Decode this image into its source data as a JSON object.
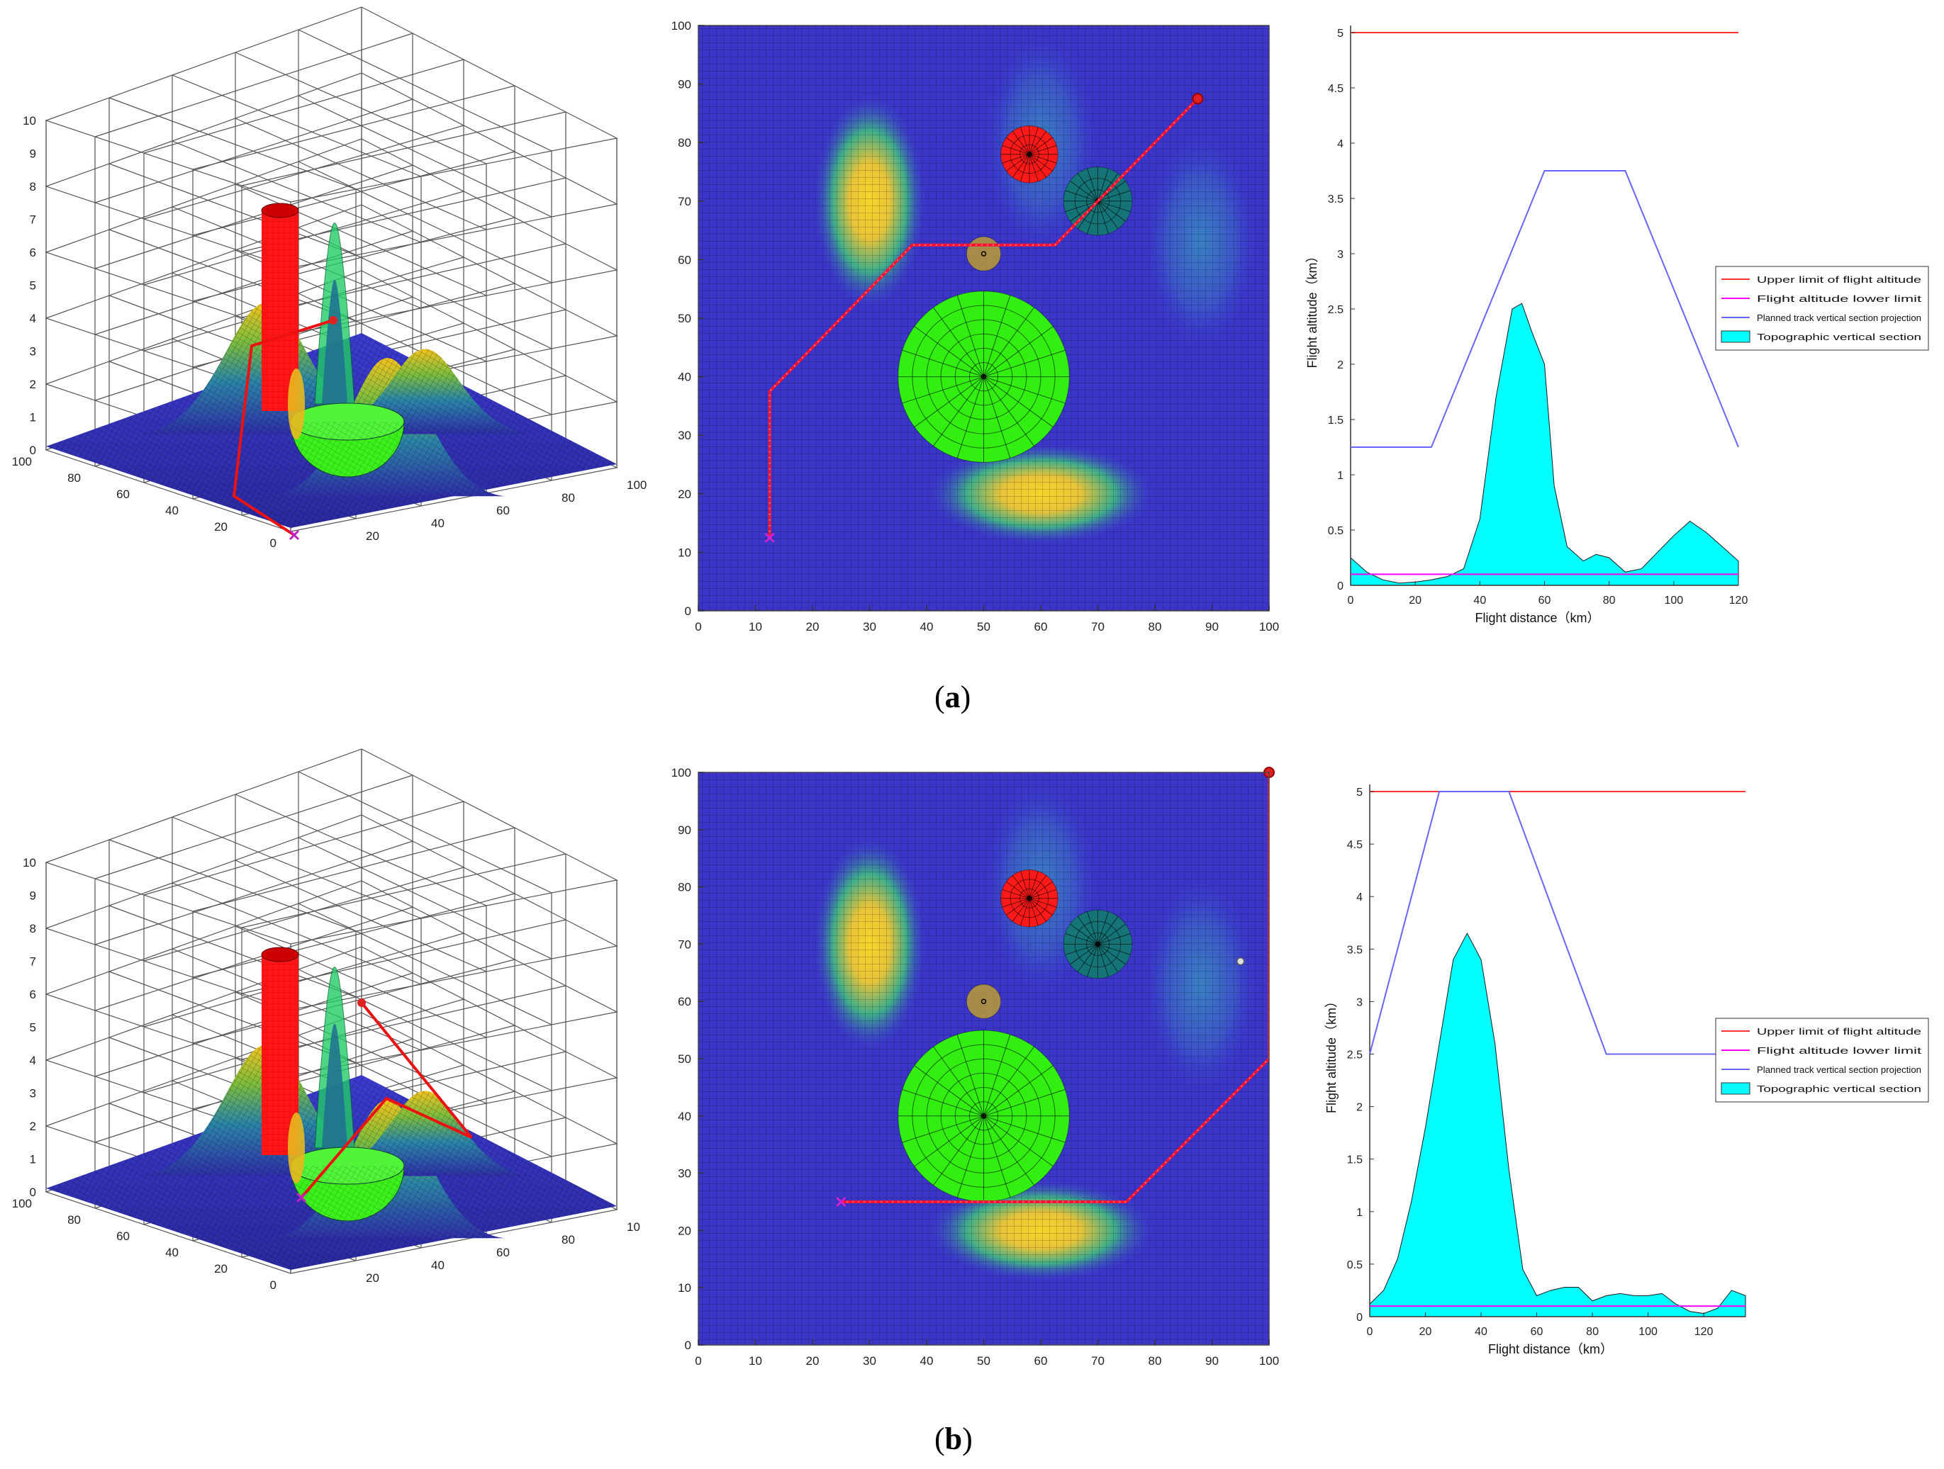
{
  "rows": [
    {
      "caption": {
        "open": "(",
        "letter": "a",
        "close": ")"
      },
      "surface3d": {
        "z_ticks": [
          "0",
          "1",
          "2",
          "3",
          "4",
          "5",
          "6",
          "7",
          "8",
          "9",
          "10"
        ],
        "left_ticks": [
          "100",
          "80",
          "60",
          "40",
          "20",
          "0"
        ],
        "right_ticks": [
          "20",
          "40",
          "60",
          "80",
          "100"
        ],
        "path_label": "planned 3D track"
      },
      "chart_data": {
        "type": "heatmap",
        "xlim": [
          0,
          100
        ],
        "ylim": [
          0,
          100
        ],
        "x_ticks": [
          "0",
          "10",
          "20",
          "30",
          "40",
          "50",
          "60",
          "70",
          "80",
          "90",
          "100"
        ],
        "y_ticks": [
          "0",
          "10",
          "20",
          "30",
          "40",
          "50",
          "60",
          "70",
          "80",
          "90",
          "100"
        ],
        "terrain_peaks": [
          {
            "x": 30,
            "y": 70,
            "height": 1.0
          },
          {
            "x": 60,
            "y": 20,
            "height": 1.0
          },
          {
            "x": 60,
            "y": 80,
            "height": 0.35
          },
          {
            "x": 88,
            "y": 63,
            "height": 0.3
          }
        ],
        "threats": [
          {
            "name": "no-fly-cylinder",
            "x": 58,
            "y": 78,
            "r": 5,
            "color": "#ff1a1a"
          },
          {
            "name": "radar-dome",
            "x": 70,
            "y": 70,
            "r": 6,
            "color": "#0f7f6a"
          },
          {
            "name": "small-threat",
            "x": 50,
            "y": 61,
            "r": 3,
            "color": "#c2a22e"
          },
          {
            "name": "large-dome",
            "x": 50,
            "y": 40,
            "r": 15,
            "color": "#33ee11"
          }
        ],
        "path": [
          [
            12.5,
            12.5
          ],
          [
            12.5,
            37.5
          ],
          [
            37.5,
            62.5
          ],
          [
            62.5,
            62.5
          ],
          [
            87.5,
            87.5
          ]
        ],
        "start": [
          12.5,
          12.5
        ],
        "goal": [
          87.5,
          87.5
        ]
      },
      "profile_data": {
        "type": "area",
        "xlim": [
          0,
          120
        ],
        "ylim": [
          0,
          5
        ],
        "x_ticks": [
          "0",
          "20",
          "40",
          "60",
          "80",
          "100",
          "120"
        ],
        "y_ticks": [
          "0",
          "0.5",
          "1",
          "1.5",
          "2",
          "2.5",
          "3",
          "3.5",
          "4",
          "4.5",
          "5"
        ],
        "xlabel": "Flight distance（km）",
        "ylabel": "Flight altitude（km）",
        "upper_limit": 5,
        "lower_limit": 0.1,
        "planned_track": {
          "x": [
            0,
            25,
            60,
            85,
            120
          ],
          "y": [
            1.25,
            1.25,
            3.75,
            3.75,
            1.25
          ]
        },
        "terrain": {
          "x": [
            0,
            5,
            10,
            15,
            20,
            25,
            30,
            35,
            40,
            45,
            50,
            53,
            56,
            60,
            63,
            67,
            72,
            76,
            80,
            85,
            90,
            95,
            100,
            105,
            110,
            115,
            120
          ],
          "y": [
            0.25,
            0.12,
            0.05,
            0.02,
            0.03,
            0.05,
            0.08,
            0.15,
            0.6,
            1.7,
            2.5,
            2.55,
            2.3,
            2.0,
            0.9,
            0.35,
            0.22,
            0.28,
            0.25,
            0.12,
            0.15,
            0.3,
            0.45,
            0.58,
            0.48,
            0.35,
            0.22
          ]
        },
        "legend": [
          {
            "label": "Upper limit of flight altitude",
            "color": "#ff3333",
            "style": "line"
          },
          {
            "label": "Flight altitude lower limit",
            "color": "#ff00ff",
            "style": "line"
          },
          {
            "label": "Planned track vertical section projection",
            "color": "#6666ff",
            "style": "line"
          },
          {
            "label": "Topographic vertical section",
            "color": "#00ffff",
            "style": "patch"
          }
        ]
      }
    },
    {
      "caption": {
        "open": "(",
        "letter": "b",
        "close": ")"
      },
      "surface3d": {
        "z_ticks": [
          "0",
          "1",
          "2",
          "3",
          "4",
          "5",
          "6",
          "7",
          "8",
          "9",
          "10"
        ],
        "left_ticks": [
          "100",
          "80",
          "60",
          "40",
          "20",
          "0"
        ],
        "right_ticks": [
          "20",
          "40",
          "60",
          "80",
          "10"
        ],
        "path_label": "planned 3D track"
      },
      "chart_data": {
        "type": "heatmap",
        "xlim": [
          0,
          100
        ],
        "ylim": [
          0,
          100
        ],
        "x_ticks": [
          "0",
          "10",
          "20",
          "30",
          "40",
          "50",
          "60",
          "70",
          "80",
          "90",
          "100"
        ],
        "y_ticks": [
          "0",
          "10",
          "20",
          "30",
          "40",
          "50",
          "60",
          "70",
          "80",
          "90",
          "100"
        ],
        "terrain_peaks": [
          {
            "x": 30,
            "y": 70,
            "height": 1.0
          },
          {
            "x": 60,
            "y": 20,
            "height": 1.0
          },
          {
            "x": 60,
            "y": 80,
            "height": 0.35
          },
          {
            "x": 88,
            "y": 63,
            "height": 0.3
          }
        ],
        "threats": [
          {
            "name": "no-fly-cylinder",
            "x": 58,
            "y": 78,
            "r": 5,
            "color": "#ff1a1a"
          },
          {
            "name": "radar-dome",
            "x": 70,
            "y": 70,
            "r": 6,
            "color": "#0f7f6a"
          },
          {
            "name": "small-threat",
            "x": 50,
            "y": 60,
            "r": 3,
            "color": "#c2a22e"
          },
          {
            "name": "large-dome",
            "x": 50,
            "y": 40,
            "r": 15,
            "color": "#33ee11"
          }
        ],
        "path": [
          [
            25,
            25
          ],
          [
            75,
            25
          ],
          [
            100,
            50
          ],
          [
            100,
            100
          ]
        ],
        "start": [
          25,
          25
        ],
        "goal": [
          100,
          100
        ],
        "extra_marker": [
          95,
          67
        ]
      },
      "profile_data": {
        "type": "area",
        "xlim": [
          0,
          135
        ],
        "ylim": [
          0,
          5
        ],
        "x_ticks": [
          "0",
          "20",
          "40",
          "60",
          "80",
          "100",
          "120"
        ],
        "x_tick_values": [
          0,
          20,
          40,
          60,
          80,
          100,
          120
        ],
        "y_ticks": [
          "0",
          "0.5",
          "1",
          "1.5",
          "2",
          "2.5",
          "3",
          "3.5",
          "4",
          "4.5",
          "5"
        ],
        "xlabel": "Flight distance（km）",
        "ylabel": "Flight altitude（km）",
        "upper_limit": 5,
        "lower_limit": 0.1,
        "planned_track": {
          "x": [
            0,
            25,
            50,
            85,
            135
          ],
          "y": [
            2.5,
            5,
            5,
            2.5,
            2.5
          ]
        },
        "terrain": {
          "x": [
            0,
            5,
            10,
            15,
            20,
            25,
            30,
            35,
            40,
            45,
            50,
            55,
            60,
            65,
            70,
            75,
            80,
            85,
            90,
            95,
            100,
            105,
            110,
            115,
            120,
            125,
            130,
            135
          ],
          "y": [
            0.12,
            0.25,
            0.55,
            1.1,
            1.8,
            2.6,
            3.4,
            3.65,
            3.4,
            2.6,
            1.4,
            0.45,
            0.2,
            0.25,
            0.28,
            0.28,
            0.15,
            0.2,
            0.22,
            0.2,
            0.2,
            0.22,
            0.12,
            0.05,
            0.03,
            0.08,
            0.25,
            0.2
          ]
        },
        "legend": [
          {
            "label": "Upper limit of flight altitude",
            "color": "#ff3333",
            "style": "line"
          },
          {
            "label": "Flight altitude lower limit",
            "color": "#ff00ff",
            "style": "line"
          },
          {
            "label": "Planned track vertical section projection",
            "color": "#6666ff",
            "style": "line"
          },
          {
            "label": "Topographic vertical section",
            "color": "#00ffff",
            "style": "patch"
          }
        ]
      }
    }
  ]
}
